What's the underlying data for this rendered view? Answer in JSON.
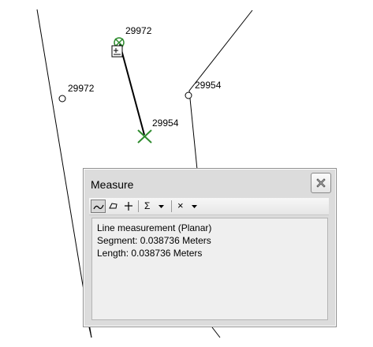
{
  "map": {
    "labels": {
      "vertex_top": "29972",
      "vertex_left": "29972",
      "vertex_right": "29954",
      "measure_end": "29954"
    }
  },
  "measure_window": {
    "title": "Measure",
    "toolbar": {
      "icons": [
        "measure-line-icon",
        "measure-area-icon",
        "measure-feature-icon",
        "sum-icon",
        "dropdown-arrow-icon",
        "clear-icon",
        "dropdown-arrow-icon"
      ],
      "sum_symbol": "Σ",
      "clear_symbol": "×"
    },
    "results": {
      "line1": "Line measurement (Planar)",
      "line2": "Segment: 0.038736 Meters",
      "line3": "Length: 0.038736 Meters"
    }
  },
  "colors": {
    "marker_green": "#2e8b2e",
    "line": "#000000"
  }
}
